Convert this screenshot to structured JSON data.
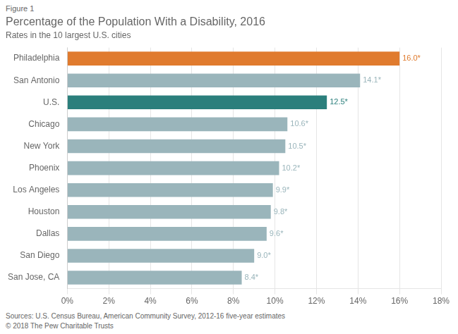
{
  "chart_data": {
    "type": "bar",
    "orientation": "horizontal",
    "title": "Percentage of the Population With a Disability, 2016",
    "subtitle": "Rates in the 10 largest U.S. cities",
    "annotations": [
      "Figure 1",
      "Sources: U.S. Census Bureau, American Community Survey, 2012-16 five-year estimates\n© 2018 The Pew Charitable Trusts"
    ],
    "categories": [
      "Philadelphia",
      "San Antonio",
      "U.S.",
      "Chicago",
      "New York",
      "Phoenix",
      "Los Angeles",
      "Houston",
      "Dallas",
      "San Diego",
      "San Jose, CA"
    ],
    "values": [
      16.0,
      14.1,
      12.5,
      10.6,
      10.5,
      10.2,
      9.9,
      9.8,
      9.6,
      9.0,
      8.4
    ],
    "value_labels": [
      "16.0*",
      "14.1*",
      "12.5*",
      "10.6*",
      "10.5*",
      "10.2*",
      "9.9*",
      "9.8*",
      "9.6*",
      "9.0*",
      "8.4*"
    ],
    "data_labels": true,
    "colors": [
      "#e07b2e",
      "#9ab5bb",
      "#2b7f7c",
      "#9ab5bb",
      "#9ab5bb",
      "#9ab5bb",
      "#9ab5bb",
      "#9ab5bb",
      "#9ab5bb",
      "#9ab5bb",
      "#9ab5bb"
    ],
    "xlim": [
      0,
      18
    ],
    "xticks": [
      {
        "value": 0,
        "label": "0%"
      },
      {
        "value": 2,
        "label": "2%"
      },
      {
        "value": 4,
        "label": "4%"
      },
      {
        "value": 6,
        "label": "6%"
      },
      {
        "value": 8,
        "label": "8%"
      },
      {
        "value": 10,
        "label": "10%"
      },
      {
        "value": 12,
        "label": "12%"
      },
      {
        "value": 14,
        "label": "14%"
      },
      {
        "value": 16,
        "label": "16%"
      },
      {
        "value": 18,
        "label": "18%"
      }
    ],
    "grid": true
  }
}
